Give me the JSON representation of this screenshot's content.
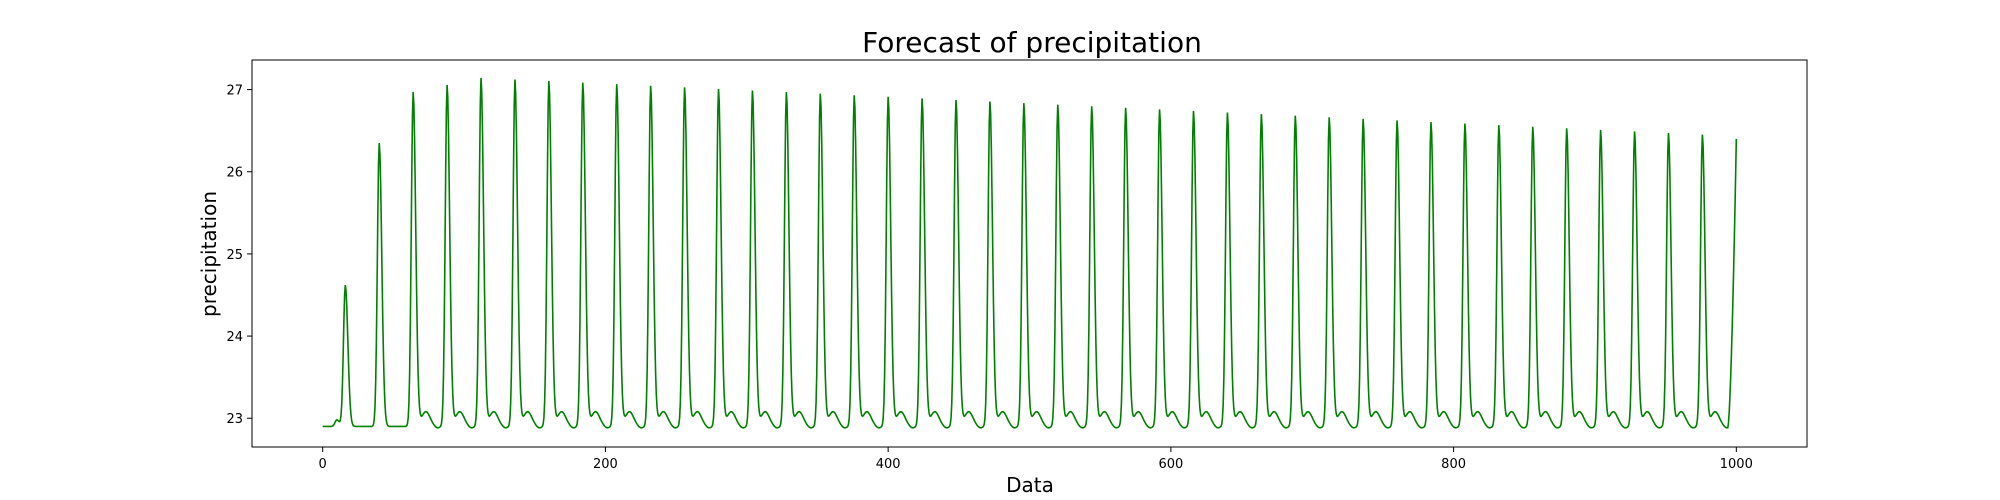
{
  "chart_data": {
    "type": "line",
    "title": "Forecast of precipitation",
    "xlabel": "Data",
    "ylabel": "precipitation",
    "xlim": [
      -50,
      1050
    ],
    "ylim": [
      22.65,
      27.36
    ],
    "x_ticks": [
      0,
      200,
      400,
      600,
      800,
      1000
    ],
    "y_ticks": [
      23,
      24,
      25,
      26,
      27
    ],
    "grid": false,
    "series": [
      {
        "color": "#008000",
        "x_range": [
          0,
          1000
        ],
        "baseline": 22.9,
        "cycle_length": 24,
        "pre_peaks": [
          {
            "x": 10,
            "y": 22.98
          },
          {
            "x": 16,
            "y": 24.62
          },
          {
            "x": 40,
            "y": 26.35
          }
        ],
        "first_full_peak": {
          "x": 64,
          "y": 26.97
        },
        "max_peak": {
          "x": 112,
          "y": 27.14
        },
        "last_peak": {
          "x": 976,
          "y": 26.45
        },
        "trough_min": 22.88,
        "secondary_bump": 23.14,
        "end_value": {
          "x": 1000,
          "y": 26.4
        }
      }
    ]
  }
}
